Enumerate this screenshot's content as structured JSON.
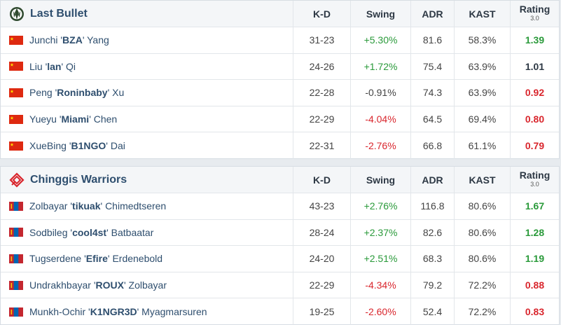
{
  "headers": {
    "kd": "K-D",
    "swing": "Swing",
    "adr": "ADR",
    "kast": "KAST",
    "rating": "Rating",
    "rating_version": "3.0"
  },
  "colors": {
    "positive": "#2a9a3a",
    "negative": "#d9262d",
    "neutral": "#2d3844",
    "player_link": "#2e4e6e"
  },
  "teams": [
    {
      "name": "Last Bullet",
      "logo_icon": "last-bullet-logo-icon",
      "players": [
        {
          "flag": "china-flag-icon",
          "first": "Junchi '",
          "nick": "BZA",
          "last": "' Yang",
          "kd": "31-23",
          "swing": "+5.30%",
          "adr": "81.6",
          "kast": "58.3%",
          "rating": "1.39"
        },
        {
          "flag": "china-flag-icon",
          "first": "Liu '",
          "nick": "lan",
          "last": "' Qi",
          "kd": "24-26",
          "swing": "+1.72%",
          "adr": "75.4",
          "kast": "63.9%",
          "rating": "1.01"
        },
        {
          "flag": "china-flag-icon",
          "first": "Peng '",
          "nick": "Roninbaby",
          "last": "' Xu",
          "kd": "22-28",
          "swing": "-0.91%",
          "adr": "74.3",
          "kast": "63.9%",
          "rating": "0.92"
        },
        {
          "flag": "china-flag-icon",
          "first": "Yueyu '",
          "nick": "Miami",
          "last": "' Chen",
          "kd": "22-29",
          "swing": "-4.04%",
          "adr": "64.5",
          "kast": "69.4%",
          "rating": "0.80"
        },
        {
          "flag": "china-flag-icon",
          "first": "XueBing '",
          "nick": "B1NGO",
          "last": "' Dai",
          "kd": "22-31",
          "swing": "-2.76%",
          "adr": "66.8",
          "kast": "61.1%",
          "rating": "0.79"
        }
      ]
    },
    {
      "name": "Chinggis Warriors",
      "logo_icon": "chinggis-warriors-logo-icon",
      "players": [
        {
          "flag": "mongolia-flag-icon",
          "first": "Zolbayar '",
          "nick": "tikuak",
          "last": "' Chimedtseren",
          "kd": "43-23",
          "swing": "+2.76%",
          "adr": "116.8",
          "kast": "80.6%",
          "rating": "1.67"
        },
        {
          "flag": "mongolia-flag-icon",
          "first": "Sodbileg '",
          "nick": "cool4st",
          "last": "' Batbaatar",
          "kd": "28-24",
          "swing": "+2.37%",
          "adr": "82.6",
          "kast": "80.6%",
          "rating": "1.28"
        },
        {
          "flag": "mongolia-flag-icon",
          "first": "Tugserdene '",
          "nick": "Efire",
          "last": "' Erdenebold",
          "kd": "24-20",
          "swing": "+2.51%",
          "adr": "68.3",
          "kast": "80.6%",
          "rating": "1.19"
        },
        {
          "flag": "mongolia-flag-icon",
          "first": "Undrakhbayar '",
          "nick": "ROUX",
          "last": "' Zolbayar",
          "kd": "22-29",
          "swing": "-4.34%",
          "adr": "79.2",
          "kast": "72.2%",
          "rating": "0.88"
        },
        {
          "flag": "mongolia-flag-icon",
          "first": "Munkh-Ochir '",
          "nick": "K1NGR3D",
          "last": "' Myagmarsuren",
          "kd": "19-25",
          "swing": "-2.60%",
          "adr": "52.4",
          "kast": "72.2%",
          "rating": "0.83"
        }
      ]
    }
  ]
}
